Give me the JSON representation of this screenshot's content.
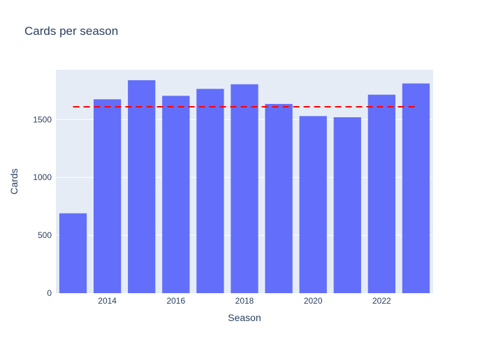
{
  "chart_data": {
    "type": "bar",
    "title": "Cards per season",
    "xlabel": "Season",
    "ylabel": "Cards",
    "x": [
      2013,
      2014,
      2015,
      2016,
      2017,
      2018,
      2019,
      2020,
      2021,
      2022,
      2023
    ],
    "values": [
      690,
      1675,
      1840,
      1705,
      1765,
      1805,
      1635,
      1530,
      1520,
      1715,
      1812
    ],
    "xticks": [
      2014,
      2016,
      2018,
      2020,
      2022
    ],
    "yticks": [
      0,
      500,
      1000,
      1500
    ],
    "ylim": [
      0,
      1930
    ],
    "reference_line": {
      "value": 1610,
      "style": "dashed"
    },
    "grid": true,
    "colors": {
      "bar": "#636efa",
      "plot_bg": "#e5ecf6",
      "reference_line": "#ff0000",
      "text": "#2a3f5f",
      "grid": "#ffffff"
    }
  }
}
